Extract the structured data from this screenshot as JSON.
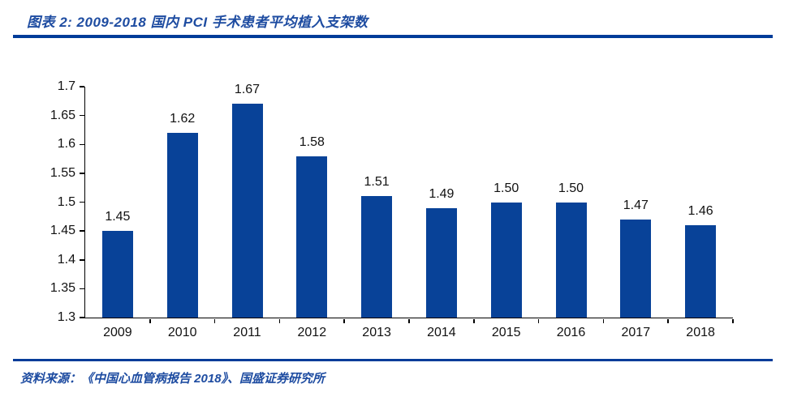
{
  "header": {
    "title": "图表 2:  2009-2018 国内 PCI 手术患者平均植入支架数"
  },
  "footer": {
    "source": "资料来源：《中国心血管病报告 2018》、国盛证券研究所"
  },
  "colors": {
    "rule_blue": "#003C99",
    "title_blue": "#1E4CA1",
    "bar_blue": "#084298",
    "axis_black": "#000000",
    "tick_text": "#111111"
  },
  "chart_data": {
    "type": "bar",
    "title": "2009-2018 国内 PCI 手术患者平均植入支架数",
    "categories": [
      "2009",
      "2010",
      "2011",
      "2012",
      "2013",
      "2014",
      "2015",
      "2016",
      "2017",
      "2018"
    ],
    "values": [
      1.45,
      1.62,
      1.67,
      1.58,
      1.51,
      1.49,
      1.5,
      1.5,
      1.47,
      1.46
    ],
    "value_labels": [
      "1.45",
      "1.62",
      "1.67",
      "1.58",
      "1.51",
      "1.49",
      "1.50",
      "1.50",
      "1.47",
      "1.46"
    ],
    "xlabel": "",
    "ylabel": "",
    "ylim": [
      1.3,
      1.7
    ],
    "ytick_values": [
      1.3,
      1.35,
      1.4,
      1.45,
      1.5,
      1.55,
      1.6,
      1.65,
      1.7
    ],
    "ytick_labels": [
      "1.3",
      "1.35",
      "1.4",
      "1.45",
      "1.5",
      "1.55",
      "1.6",
      "1.65",
      "1.7"
    ],
    "grid": false,
    "legend": "none",
    "bar_color": "#084298"
  }
}
